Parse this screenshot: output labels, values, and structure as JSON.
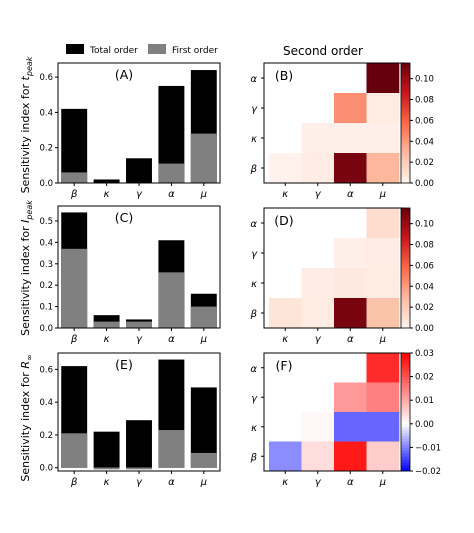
{
  "figure": {
    "right_title": "Second order",
    "legend": {
      "total_label": "Total order",
      "first_label": "First order"
    },
    "colors": {
      "total": "#000000",
      "first": "#808080"
    }
  },
  "chart_data": [
    {
      "id": "A",
      "type": "bar",
      "panel_label": "(A)",
      "ylabel": "Sensitivity index for t_peak",
      "categories": [
        "β",
        "κ",
        "γ",
        "α",
        "μ"
      ],
      "series": [
        {
          "name": "Total order",
          "values": [
            0.42,
            0.02,
            0.14,
            0.55,
            0.64
          ]
        },
        {
          "name": "First order",
          "values": [
            0.06,
            0.0,
            0.0,
            0.11,
            0.28
          ]
        }
      ],
      "ylim": [
        0,
        0.68
      ],
      "yticks": [
        0.0,
        0.2,
        0.4,
        0.6
      ],
      "tick_labels": [
        "0.0",
        "0.2",
        "0.4",
        "0.6"
      ]
    },
    {
      "id": "B",
      "type": "heatmap",
      "panel_label": "(B)",
      "row_labels": [
        "α",
        "γ",
        "κ",
        "β"
      ],
      "col_labels": [
        "κ",
        "γ",
        "α",
        "μ"
      ],
      "values": [
        [
          null,
          null,
          null,
          0.115
        ],
        [
          null,
          null,
          0.045,
          0.005
        ],
        [
          null,
          0.003,
          0.003,
          0.003
        ],
        [
          0.002,
          0.004,
          0.11,
          0.03
        ]
      ],
      "colormap": "Reds",
      "vmin": 0.0,
      "vmax": 0.115,
      "colorbar_ticks": [
        0.0,
        0.02,
        0.04,
        0.06,
        0.08,
        0.1
      ],
      "colorbar_labels": [
        "0.00",
        "0.02",
        "0.04",
        "0.06",
        "0.08",
        "0.10"
      ]
    },
    {
      "id": "C",
      "type": "bar",
      "panel_label": "(C)",
      "ylabel": "Sensitivity index for I_peak",
      "categories": [
        "β",
        "κ",
        "γ",
        "α",
        "μ"
      ],
      "series": [
        {
          "name": "Total order",
          "values": [
            0.54,
            0.06,
            0.04,
            0.41,
            0.16
          ]
        },
        {
          "name": "First order",
          "values": [
            0.37,
            0.03,
            0.03,
            0.26,
            0.1
          ]
        }
      ],
      "ylim": [
        0,
        0.57
      ],
      "yticks": [
        0.0,
        0.1,
        0.2,
        0.3,
        0.4,
        0.5
      ],
      "tick_labels": [
        "0.0",
        "0.1",
        "0.2",
        "0.3",
        "0.4",
        "0.5"
      ]
    },
    {
      "id": "D",
      "type": "heatmap",
      "panel_label": "(D)",
      "row_labels": [
        "α",
        "γ",
        "κ",
        "β"
      ],
      "col_labels": [
        "κ",
        "γ",
        "α",
        "μ"
      ],
      "values": [
        [
          null,
          null,
          null,
          0.012
        ],
        [
          null,
          null,
          0.003,
          0.004
        ],
        [
          null,
          0.004,
          0.006,
          0.005
        ],
        [
          0.008,
          0.005,
          0.11,
          0.025
        ]
      ],
      "colormap": "Reds",
      "vmin": 0.0,
      "vmax": 0.115,
      "colorbar_ticks": [
        0.0,
        0.02,
        0.04,
        0.06,
        0.08,
        0.1
      ],
      "colorbar_labels": [
        "0.00",
        "0.02",
        "0.04",
        "0.06",
        "0.08",
        "0.10"
      ]
    },
    {
      "id": "E",
      "type": "bar",
      "panel_label": "(E)",
      "ylabel": "Sensitivity index for R_∞",
      "categories": [
        "β",
        "κ",
        "γ",
        "α",
        "μ"
      ],
      "series": [
        {
          "name": "Total order",
          "values": [
            0.62,
            0.22,
            0.29,
            0.66,
            0.49
          ]
        },
        {
          "name": "First order",
          "values": [
            0.21,
            -0.01,
            -0.01,
            0.23,
            0.09
          ]
        }
      ],
      "ylim": [
        -0.02,
        0.7
      ],
      "yticks": [
        0.0,
        0.2,
        0.4,
        0.6
      ],
      "tick_labels": [
        "0.0",
        "0.2",
        "0.4",
        "0.6"
      ]
    },
    {
      "id": "F",
      "type": "heatmap",
      "panel_label": "(F)",
      "row_labels": [
        "α",
        "γ",
        "κ",
        "β"
      ],
      "col_labels": [
        "κ",
        "γ",
        "α",
        "μ"
      ],
      "values": [
        [
          null,
          null,
          null,
          0.025
        ],
        [
          null,
          null,
          0.012,
          0.015
        ],
        [
          null,
          0.001,
          -0.012,
          -0.012
        ],
        [
          -0.009,
          0.004,
          0.027,
          0.006
        ]
      ],
      "colormap": "bwr",
      "vmin": -0.02,
      "vmax": 0.03,
      "colorbar_ticks": [
        -0.02,
        -0.01,
        0.0,
        0.01,
        0.02,
        0.03
      ],
      "colorbar_labels": [
        "−0.02",
        "−0.01",
        "0.00",
        "0.01",
        "0.02",
        "0.03"
      ]
    }
  ]
}
